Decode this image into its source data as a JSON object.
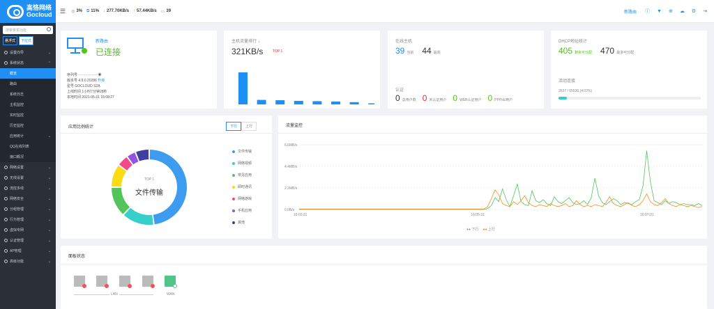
{
  "brand": {
    "name_cn": "高恪网络",
    "name_en": "Gocloud"
  },
  "sidebar": {
    "search_placeholder": "搜索菜单功能",
    "mode_float": "悬浮式",
    "mode_dropdown": "下拉式",
    "items": [
      {
        "label": "设置向导"
      },
      {
        "label": "系统状态",
        "expanded": true
      },
      {
        "label": "概览",
        "sub": true,
        "active": true
      },
      {
        "label": "路由",
        "sub": true
      },
      {
        "label": "系统日志",
        "sub": true
      },
      {
        "label": "主机监控",
        "sub": true
      },
      {
        "label": "实时监控",
        "sub": true
      },
      {
        "label": "历史监控",
        "sub": true
      },
      {
        "label": "应用统计",
        "sub": true
      },
      {
        "label": "QQ在线列表",
        "sub": true
      },
      {
        "label": "接口概况",
        "sub": true
      },
      {
        "label": "网络设置"
      },
      {
        "label": "无线设置"
      },
      {
        "label": "流控多线"
      },
      {
        "label": "网络安全"
      },
      {
        "label": "分组管理"
      },
      {
        "label": "行为管理"
      },
      {
        "label": "虚拟专网"
      },
      {
        "label": "认证管理"
      },
      {
        "label": "AP管理"
      },
      {
        "label": "高级功能"
      }
    ]
  },
  "topbar": {
    "cpu": "3%",
    "mem": "11%",
    "down": "277.70KB/s",
    "up": "57.44KB/s",
    "hosts": "39",
    "new_routing": "新路由"
  },
  "device": {
    "link": "新路由",
    "status": "已连接",
    "serial_label": "序列号",
    "serial_value": "················",
    "version_label": "版本号",
    "version_value": "4.9.0.20286",
    "upgrade": "升级",
    "model_label": "型号",
    "model_value": "GOCLOUD S2A",
    "uptime_label": "上线时间",
    "uptime_value": "1小时7分钟28秒",
    "time_label": "本地时间",
    "time_value": "2021-05-31 16:08:27"
  },
  "host_rank": {
    "title": "主机流量排行",
    "value": "321KB/s",
    "badge": "TOP 1",
    "bars": [
      1.0,
      0.14,
      0.13,
      0.11,
      0.1,
      0.09,
      0.07,
      0.03
    ]
  },
  "online": {
    "title": "在线主机",
    "count": "39",
    "count_label": "当前",
    "peak": "44",
    "peak_label": "最高",
    "auth_title": "认证",
    "auth": [
      {
        "value": "0",
        "label": "总用户数",
        "color": "#333"
      },
      {
        "value": "0",
        "label": "未认证用户",
        "color": "#f5222d"
      },
      {
        "value": "0",
        "label": "WEB认证用户",
        "color": "#52c41a"
      },
      {
        "value": "0",
        "label": "PPPoE用户",
        "color": "#52c41a"
      }
    ]
  },
  "dhcp": {
    "title": "DHCP地址统计",
    "remain": "405",
    "remain_label": "剩余可分配",
    "max": "470",
    "max_label": "最多可分配",
    "conn_title": "活动连接",
    "conn_text": "2637 / 65536 (4.02%)",
    "conn_fraction": 0.0402
  },
  "app_stats": {
    "title": "应用比例统计",
    "tab_down": "下行",
    "tab_up": "上行",
    "center_top": "TOP 1",
    "center_label": "文件传输",
    "legend": [
      {
        "label": "文件传输",
        "color": "#3d9cf0",
        "value": 48
      },
      {
        "label": "网络视频",
        "color": "#36cfc9",
        "value": 14
      },
      {
        "label": "常见应用",
        "color": "#52c45a",
        "value": 13
      },
      {
        "label": "即时通讯",
        "color": "#fadb14",
        "value": 10
      },
      {
        "label": "网络游戏",
        "color": "#f5488a",
        "value": 5
      },
      {
        "label": "手机应用",
        "color": "#9254de",
        "value": 4
      },
      {
        "label": "其他",
        "color": "#3f3fa0",
        "value": 6
      }
    ]
  },
  "traffic": {
    "title": "流量监控",
    "legend_down": "下行",
    "legend_up": "上行"
  },
  "chart_data": {
    "type": "line",
    "title": "流量监控",
    "y_ticks": [
      "6.6MB/s",
      "4.4MB/s",
      "2.2MB/s",
      "0.0B/s"
    ],
    "ylim": [
      0,
      6.6
    ],
    "x_ticks": [
      "16:03:31",
      "16:05:31",
      "16:07:31"
    ],
    "series": [
      {
        "name": "下行",
        "color": "#52c45a",
        "values": [
          0,
          0,
          0,
          0,
          0,
          0,
          0,
          0,
          0,
          0,
          0,
          0,
          0,
          0,
          0,
          0,
          0,
          0,
          0,
          0,
          0,
          0,
          0,
          0,
          0,
          0,
          0,
          0,
          0,
          0,
          0,
          0,
          0,
          0,
          0,
          0,
          0,
          0,
          0,
          0,
          0,
          0,
          0,
          0,
          0,
          0,
          0,
          0,
          0,
          0,
          0,
          0.1,
          0.4,
          1.2,
          0.8,
          2.1,
          1.0,
          0.3,
          1.4,
          2.6,
          0.8,
          0.5,
          0.4,
          1.9,
          0.9,
          0.7,
          1.0,
          0.6,
          0.4,
          1.3,
          0.8,
          0.6,
          0.9,
          1.2,
          0.7,
          0.5,
          0.6,
          0.9,
          0.5,
          1.2,
          3.2,
          1.4,
          0.7,
          0.5,
          0.8,
          1.1,
          0.9,
          0.5,
          0.7,
          0.6,
          0.5,
          0.8,
          1.0,
          2.4,
          6.0,
          2.8,
          0.9,
          0.7,
          0.5,
          0.9,
          0.6,
          0.8,
          0.7,
          0.5,
          0.6,
          0.5,
          0.5,
          0.4,
          0.6,
          0.4
        ]
      },
      {
        "name": "上行",
        "color": "#fa8c16",
        "values": [
          0.05,
          0.05,
          0.05,
          0.05,
          0.05,
          0.05,
          0.05,
          0.05,
          0.05,
          0.05,
          0.05,
          0.05,
          0.05,
          0.05,
          0.05,
          0.05,
          0.05,
          0.05,
          0.05,
          0.05,
          0.05,
          0.05,
          0.05,
          0.05,
          0.05,
          0.05,
          0.05,
          0.05,
          0.05,
          0.05,
          0.05,
          0.05,
          0.05,
          0.05,
          0.05,
          0.05,
          0.05,
          0.05,
          0.05,
          0.05,
          0.05,
          0.05,
          0.05,
          0.05,
          0.05,
          0.05,
          0.05,
          0.05,
          0.05,
          0.05,
          0.05,
          0.3,
          1.1,
          2.0,
          1.5,
          0.6,
          0.4,
          0.3,
          0.8,
          0.5,
          0.9,
          1.4,
          0.7,
          0.4,
          0.3,
          0.5,
          0.4,
          0.3,
          0.6,
          0.4,
          0.3,
          0.4,
          0.6,
          0.3,
          0.4,
          0.9,
          0.5,
          0.3,
          0.4,
          0.3,
          0.5,
          0.4,
          0.3,
          0.7,
          1.3,
          0.6,
          0.4,
          0.3,
          0.5,
          0.7,
          0.4,
          0.3,
          0.5,
          0.9,
          1.6,
          0.8,
          0.5,
          0.4,
          0.7,
          1.1,
          0.6,
          0.4,
          0.3,
          0.5,
          0.4,
          0.3,
          0.4,
          0.3,
          0.2,
          0.3
        ]
      }
    ]
  },
  "panel": {
    "title": "面板状态",
    "lan_label": "LAN",
    "wan_label": "WAN"
  }
}
